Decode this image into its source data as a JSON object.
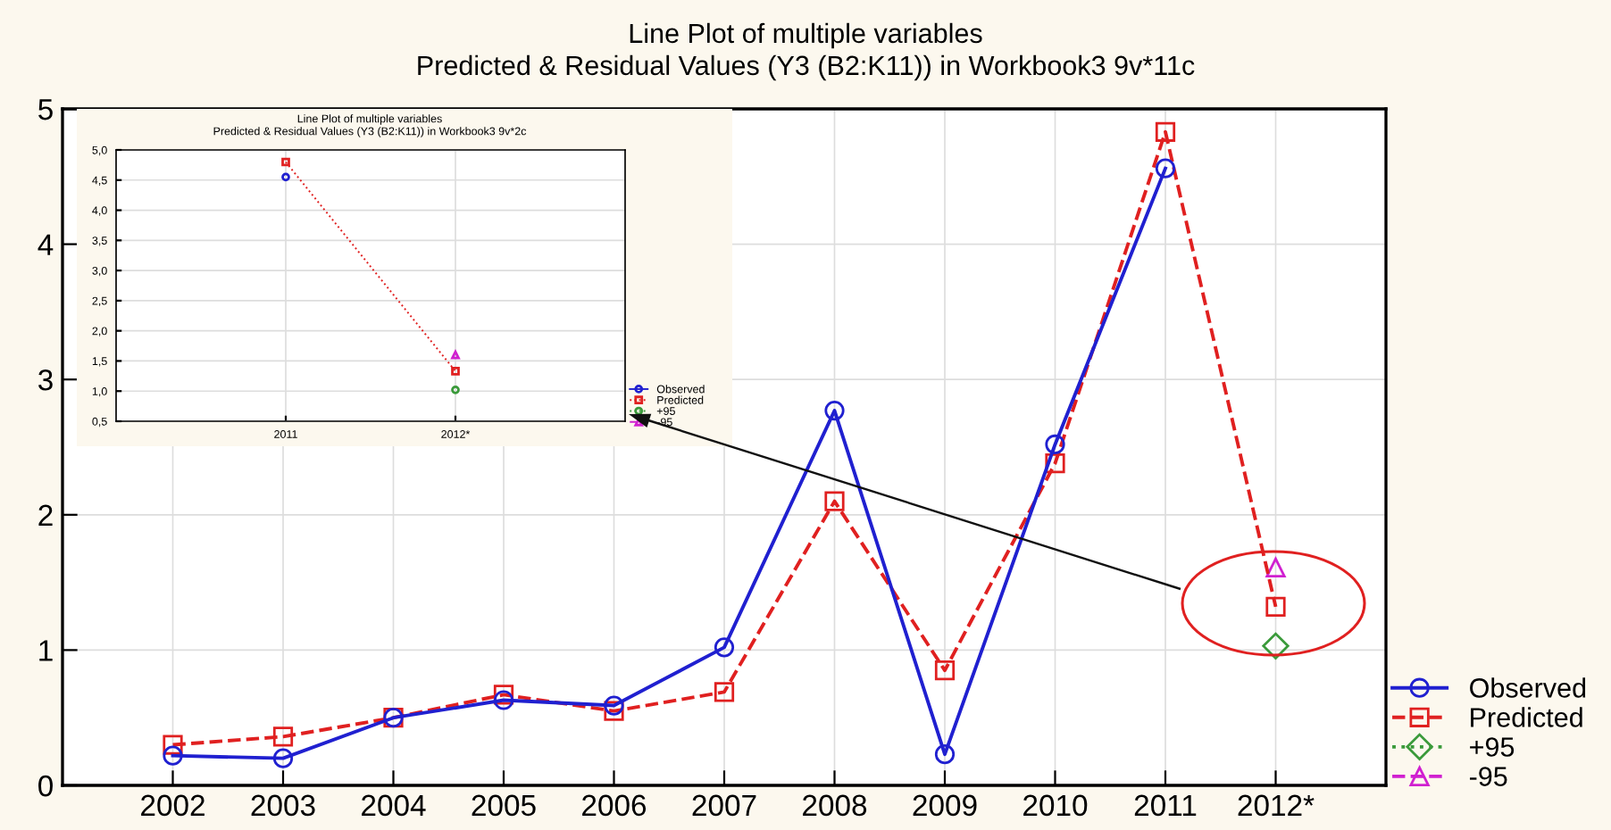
{
  "chart_data": [
    {
      "type": "line",
      "title": "Line Plot of multiple variables",
      "subtitle": "Predicted & Residual Values (Y3 (B2:K11)) in Workbook3 9v*11c",
      "categories": [
        "2002",
        "2003",
        "2004",
        "2005",
        "2006",
        "2007",
        "2008",
        "2009",
        "2010",
        "2011",
        "2012*"
      ],
      "series": [
        {
          "name": "Observed",
          "color": "#2020d0",
          "marker": "circle",
          "line_style": "solid",
          "values": [
            0.22,
            0.2,
            0.5,
            0.63,
            0.59,
            1.02,
            2.77,
            0.23,
            2.52,
            4.56,
            null
          ]
        },
        {
          "name": "Predicted",
          "color": "#e02020",
          "marker": "square",
          "line_style": "dashed",
          "values": [
            0.3,
            0.36,
            0.5,
            0.67,
            0.55,
            0.69,
            2.1,
            0.85,
            2.38,
            4.83,
            1.32
          ]
        },
        {
          "name": "+95",
          "color": "#3a9a3a",
          "marker": "diamond",
          "line_style": "dotted",
          "values": [
            null,
            null,
            null,
            null,
            null,
            null,
            null,
            null,
            null,
            null,
            1.03
          ]
        },
        {
          "name": "-95",
          "color": "#d020d0",
          "marker": "triangle",
          "line_style": "dashed",
          "values": [
            null,
            null,
            null,
            null,
            null,
            null,
            null,
            null,
            null,
            null,
            1.61
          ]
        }
      ],
      "ylim": [
        0,
        5
      ],
      "yticks": [
        0,
        1,
        2,
        3,
        4,
        5
      ],
      "grid": true,
      "legend": "bottom right"
    },
    {
      "type": "line",
      "title": "Line Plot of multiple variables",
      "subtitle": "Predicted & Residual Values (Y3 (B2:K11)) in Workbook3 9v*2c",
      "categories": [
        "2011",
        "2012*"
      ],
      "series": [
        {
          "name": "Observed",
          "color": "#2020d0",
          "marker": "circle",
          "line_style": "solid",
          "values": [
            4.55,
            null
          ]
        },
        {
          "name": "Predicted",
          "color": "#e02020",
          "marker": "square",
          "line_style": "dotted",
          "values": [
            4.8,
            1.33
          ]
        },
        {
          "name": "+95",
          "color": "#3a9a3a",
          "marker": "circle",
          "line_style": "dotted",
          "values": [
            null,
            1.02
          ]
        },
        {
          "name": "-95",
          "color": "#d020d0",
          "marker": "triangle",
          "line_style": "dashed",
          "values": [
            null,
            1.6
          ]
        }
      ],
      "ylim": [
        0.5,
        5.0
      ],
      "yticks": [
        {
          "value": 0.5,
          "label": "0,5"
        },
        {
          "value": 1.0,
          "label": "1,0"
        },
        {
          "value": 1.5,
          "label": "1,5"
        },
        {
          "value": 2.0,
          "label": "2,0"
        },
        {
          "value": 2.5,
          "label": "2,5"
        },
        {
          "value": 3.0,
          "label": "3,0"
        },
        {
          "value": 3.5,
          "label": "3,5"
        },
        {
          "value": 4.0,
          "label": "4,0"
        },
        {
          "value": 4.5,
          "label": "4,5"
        },
        {
          "value": 5.0,
          "label": "5,0"
        }
      ],
      "grid": true,
      "legend": "bottom right"
    }
  ]
}
